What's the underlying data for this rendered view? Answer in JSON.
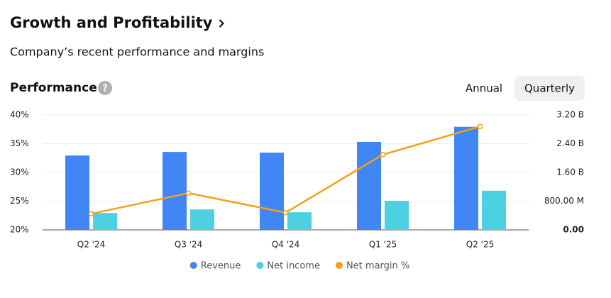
{
  "header": {
    "title": "Growth and Profitability",
    "subtitle": "Company’s recent performance and margins"
  },
  "section": {
    "title": "Performance",
    "help_icon": "?",
    "periods": [
      "Annual",
      "Quarterly"
    ],
    "selected_period": 1
  },
  "chart_data": {
    "type": "bar",
    "categories": [
      "Q2 '24",
      "Q3 '24",
      "Q4 '24",
      "Q1 '25",
      "Q2 '25"
    ],
    "series": [
      {
        "name": "Revenue",
        "type": "bar",
        "axis": "y2",
        "color": "#4285f4",
        "values": [
          2070000000,
          2170000000,
          2150000000,
          2450000000,
          2870000000
        ]
      },
      {
        "name": "Net income",
        "type": "bar",
        "axis": "y2",
        "color": "#4dd0e1",
        "values": [
          470000000,
          570000000,
          490000000,
          810000000,
          1090000000
        ]
      },
      {
        "name": "Net margin %",
        "type": "line",
        "axis": "y",
        "color": "#f5a01a",
        "values": [
          22.8,
          26.4,
          23.0,
          33.1,
          38.0
        ]
      }
    ],
    "ylim": [
      20,
      40
    ],
    "yticks": [
      {
        "value": 20,
        "label": "20%"
      },
      {
        "value": 25,
        "label": "25%"
      },
      {
        "value": 30,
        "label": "30%"
      },
      {
        "value": 35,
        "label": "35%"
      },
      {
        "value": 40,
        "label": "40%"
      }
    ],
    "y2lim": [
      0,
      3200000000
    ],
    "y2ticks": [
      {
        "value": 0,
        "label": "0.00"
      },
      {
        "value": 800000000,
        "label": "800.00 M"
      },
      {
        "value": 1600000000,
        "label": "1.60 B"
      },
      {
        "value": 2400000000,
        "label": "2.40 B"
      },
      {
        "value": 3200000000,
        "label": "3.20 B"
      }
    ],
    "grid": true,
    "legend": "bottom"
  }
}
